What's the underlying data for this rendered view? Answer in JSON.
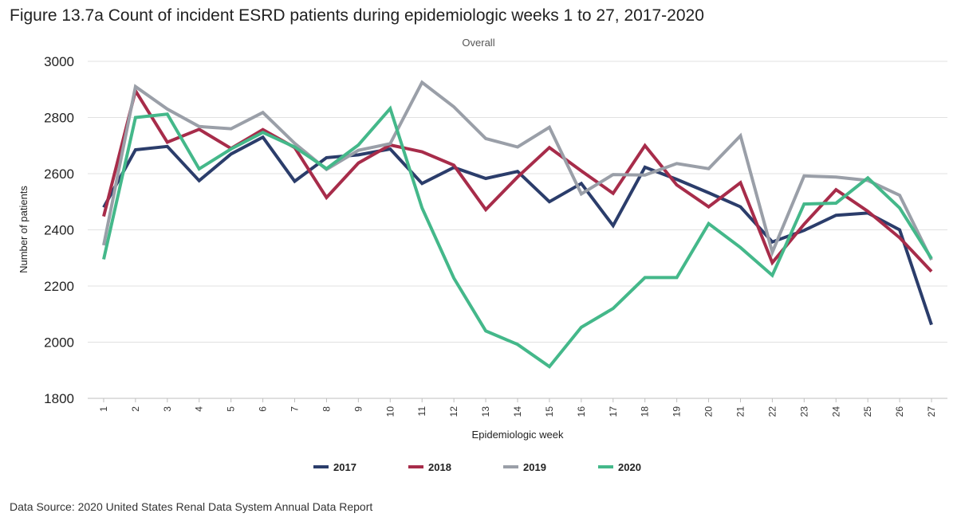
{
  "title": "Figure 13.7a Count of incident ESRD patients during epidemiologic weeks 1 to 27, 2017-2020",
  "source": "Data Source: 2020 United States Renal Data System Annual Data Report",
  "chart_data": {
    "type": "line",
    "subtitle": "Overall",
    "xlabel": "Epidemiologic week",
    "ylabel": "Number of patients",
    "ylim": [
      1800,
      3000
    ],
    "yticks": [
      1800,
      2000,
      2200,
      2400,
      2600,
      2800,
      3000
    ],
    "grid": true,
    "legend_position": "bottom",
    "x": [
      1,
      2,
      3,
      4,
      5,
      6,
      7,
      8,
      9,
      10,
      11,
      12,
      13,
      14,
      15,
      16,
      17,
      18,
      19,
      20,
      21,
      22,
      23,
      24,
      25,
      26,
      27
    ],
    "series": [
      {
        "name": "2017",
        "color": "#2b3d6b",
        "values": [
          2480,
          2685,
          2697,
          2575,
          2670,
          2730,
          2573,
          2657,
          2667,
          2688,
          2565,
          2622,
          2583,
          2608,
          2500,
          2565,
          2415,
          2623,
          2580,
          2532,
          2482,
          2357,
          2398,
          2452,
          2460,
          2400,
          2062
        ]
      },
      {
        "name": "2018",
        "color": "#a72c4a",
        "values": [
          2448,
          2895,
          2712,
          2758,
          2690,
          2757,
          2693,
          2515,
          2638,
          2702,
          2678,
          2630,
          2472,
          2588,
          2693,
          2610,
          2530,
          2700,
          2560,
          2482,
          2568,
          2283,
          2420,
          2543,
          2466,
          2372,
          2252
        ]
      },
      {
        "name": "2019",
        "color": "#9a9fa8",
        "values": [
          2345,
          2910,
          2830,
          2768,
          2760,
          2818,
          2708,
          2615,
          2683,
          2707,
          2925,
          2838,
          2725,
          2695,
          2765,
          2528,
          2597,
          2595,
          2636,
          2618,
          2735,
          2320,
          2592,
          2588,
          2576,
          2523,
          2293
        ]
      },
      {
        "name": "2020",
        "color": "#44b88a",
        "values": [
          2295,
          2800,
          2812,
          2617,
          2688,
          2747,
          2695,
          2618,
          2702,
          2832,
          2478,
          2228,
          2040,
          1992,
          1913,
          2053,
          2120,
          2230,
          2230,
          2422,
          2337,
          2238,
          2492,
          2495,
          2585,
          2478,
          2298
        ]
      }
    ]
  }
}
